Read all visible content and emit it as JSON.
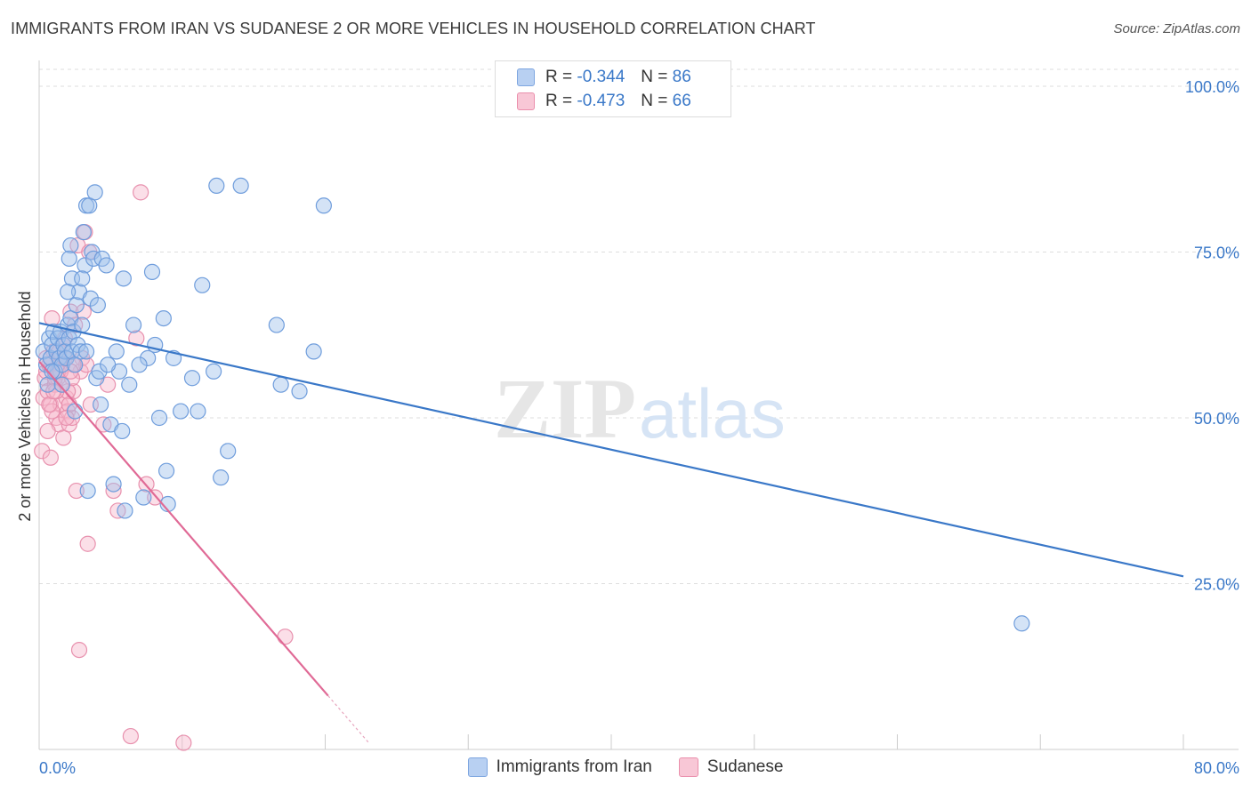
{
  "title": "IMMIGRANTS FROM IRAN VS SUDANESE 2 OR MORE VEHICLES IN HOUSEHOLD CORRELATION CHART",
  "source": "Source: ZipAtlas.com",
  "watermark": {
    "zip": "ZIP",
    "atlas": "atlas"
  },
  "stats": {
    "blue": {
      "r_label": "R =",
      "r_value": "-0.344",
      "n_label": "N =",
      "n_value": "86"
    },
    "pink": {
      "r_label": "R =",
      "r_value": "-0.473",
      "n_label": "N =",
      "n_value": "66"
    }
  },
  "legend": {
    "blue": "Immigrants from Iran",
    "pink": "Sudanese"
  },
  "colors": {
    "blue": "#3a78c8",
    "pink": "#e06a96",
    "blue_fill": "#b8d0f2",
    "pink_fill": "#f8c7d6",
    "tick_label": "#3a78c8"
  },
  "chart_data": {
    "type": "scatter",
    "title": "IMMIGRANTS FROM IRAN VS SUDANESE 2 OR MORE VEHICLES IN HOUSEHOLD CORRELATION CHART",
    "xlabel": "",
    "ylabel": "2 or more Vehicles in Household",
    "xlim": [
      0,
      80
    ],
    "ylim": [
      0,
      100
    ],
    "x_tick_labels": [
      "0.0%",
      "80.0%"
    ],
    "y_ticks": [
      25,
      50,
      75,
      100
    ],
    "y_tick_labels": [
      "25.0%",
      "50.0%",
      "75.0%",
      "100.0%"
    ],
    "grid": true,
    "legend_position": "bottom",
    "series": [
      {
        "name": "Immigrants from Iran",
        "color": "#3a78c8",
        "points": [
          [
            0.3,
            60
          ],
          [
            0.5,
            58
          ],
          [
            0.6,
            55
          ],
          [
            0.7,
            62
          ],
          [
            0.8,
            59
          ],
          [
            0.9,
            61
          ],
          [
            1.0,
            63
          ],
          [
            1.1,
            57
          ],
          [
            1.2,
            60
          ],
          [
            1.3,
            62
          ],
          [
            1.4,
            59
          ],
          [
            1.5,
            63
          ],
          [
            1.6,
            58
          ],
          [
            1.7,
            61
          ],
          [
            1.8,
            60
          ],
          [
            1.9,
            59
          ],
          [
            2.0,
            64
          ],
          [
            2.1,
            62
          ],
          [
            2.2,
            65
          ],
          [
            2.3,
            60
          ],
          [
            2.4,
            63
          ],
          [
            2.5,
            51
          ],
          [
            2.6,
            67
          ],
          [
            2.7,
            61
          ],
          [
            2.8,
            69
          ],
          [
            2.9,
            60
          ],
          [
            3.0,
            64
          ],
          [
            3.1,
            78
          ],
          [
            3.2,
            73
          ],
          [
            3.3,
            82
          ],
          [
            3.4,
            39
          ],
          [
            3.5,
            82
          ],
          [
            3.6,
            68
          ],
          [
            3.7,
            75
          ],
          [
            3.8,
            74
          ],
          [
            3.9,
            84
          ],
          [
            4.0,
            56
          ],
          [
            4.1,
            67
          ],
          [
            4.2,
            57
          ],
          [
            4.3,
            52
          ],
          [
            4.4,
            74
          ],
          [
            2.2,
            76
          ],
          [
            2.3,
            71
          ],
          [
            2.0,
            69
          ],
          [
            3.0,
            71
          ],
          [
            2.1,
            74
          ],
          [
            4.7,
            73
          ],
          [
            5.0,
            49
          ],
          [
            5.2,
            40
          ],
          [
            5.4,
            60
          ],
          [
            5.6,
            57
          ],
          [
            5.8,
            48
          ],
          [
            6.0,
            36
          ],
          [
            6.3,
            55
          ],
          [
            6.6,
            64
          ],
          [
            7.3,
            38
          ],
          [
            7.6,
            59
          ],
          [
            7.9,
            72
          ],
          [
            8.1,
            61
          ],
          [
            8.4,
            50
          ],
          [
            8.7,
            65
          ],
          [
            8.9,
            42
          ],
          [
            9.0,
            37
          ],
          [
            9.4,
            59
          ],
          [
            9.9,
            51
          ],
          [
            10.7,
            56
          ],
          [
            11.1,
            51
          ],
          [
            11.4,
            70
          ],
          [
            12.2,
            57
          ],
          [
            12.4,
            85
          ],
          [
            12.7,
            41
          ],
          [
            13.2,
            45
          ],
          [
            14.1,
            85
          ],
          [
            16.6,
            64
          ],
          [
            16.9,
            55
          ],
          [
            18.2,
            54
          ],
          [
            19.2,
            60
          ],
          [
            19.9,
            82
          ],
          [
            68.7,
            19
          ],
          [
            7.0,
            58
          ],
          [
            1.6,
            55
          ],
          [
            2.5,
            58
          ],
          [
            0.9,
            57
          ],
          [
            3.3,
            60
          ],
          [
            5.9,
            71
          ],
          [
            4.8,
            58
          ]
        ]
      },
      {
        "name": "Sudanese",
        "color": "#e06a96",
        "points": [
          [
            0.2,
            45
          ],
          [
            0.3,
            53
          ],
          [
            0.4,
            56
          ],
          [
            0.5,
            57
          ],
          [
            0.6,
            54
          ],
          [
            0.7,
            58
          ],
          [
            0.8,
            52
          ],
          [
            0.9,
            65
          ],
          [
            1.0,
            60
          ],
          [
            1.1,
            55
          ],
          [
            1.2,
            50
          ],
          [
            1.3,
            56
          ],
          [
            1.4,
            49
          ],
          [
            1.5,
            52
          ],
          [
            1.6,
            58
          ],
          [
            1.7,
            47
          ],
          [
            1.8,
            62
          ],
          [
            1.9,
            53
          ],
          [
            2.0,
            51
          ],
          [
            2.1,
            49
          ],
          [
            2.2,
            66
          ],
          [
            2.3,
            50
          ],
          [
            2.4,
            54
          ],
          [
            2.5,
            64
          ],
          [
            2.6,
            39
          ],
          [
            2.7,
            76
          ],
          [
            2.8,
            15
          ],
          [
            2.9,
            57
          ],
          [
            3.0,
            59
          ],
          [
            3.1,
            66
          ],
          [
            3.2,
            78
          ],
          [
            3.3,
            58
          ],
          [
            3.4,
            31
          ],
          [
            3.5,
            75
          ],
          [
            3.6,
            52
          ],
          [
            4.5,
            49
          ],
          [
            4.8,
            55
          ],
          [
            5.2,
            39
          ],
          [
            5.5,
            36
          ],
          [
            6.4,
            2
          ],
          [
            6.8,
            62
          ],
          [
            7.1,
            84
          ],
          [
            7.5,
            40
          ],
          [
            8.1,
            38
          ],
          [
            10.1,
            1
          ],
          [
            17.2,
            17
          ],
          [
            0.8,
            44
          ],
          [
            1.1,
            56
          ],
          [
            1.4,
            60
          ],
          [
            1.7,
            61
          ],
          [
            2.0,
            54
          ],
          [
            2.3,
            56
          ],
          [
            0.6,
            48
          ],
          [
            0.9,
            51
          ],
          [
            1.2,
            54
          ],
          [
            1.5,
            57
          ],
          [
            1.8,
            59
          ],
          [
            2.1,
            52
          ],
          [
            2.4,
            58
          ],
          [
            0.5,
            59
          ],
          [
            0.7,
            52
          ],
          [
            1.3,
            57
          ],
          [
            1.6,
            55
          ],
          [
            1.9,
            50
          ],
          [
            2.2,
            57
          ],
          [
            1.0,
            54
          ]
        ]
      }
    ],
    "trendlines": [
      {
        "series": "Immigrants from Iran",
        "x": [
          0,
          80
        ],
        "y": [
          64.3,
          26.1
        ]
      },
      {
        "series": "Sudanese",
        "x": [
          0,
          20.2
        ],
        "y": [
          58.5,
          8.1
        ],
        "dashed_extension_x": [
          20.2,
          23.0
        ]
      }
    ]
  }
}
